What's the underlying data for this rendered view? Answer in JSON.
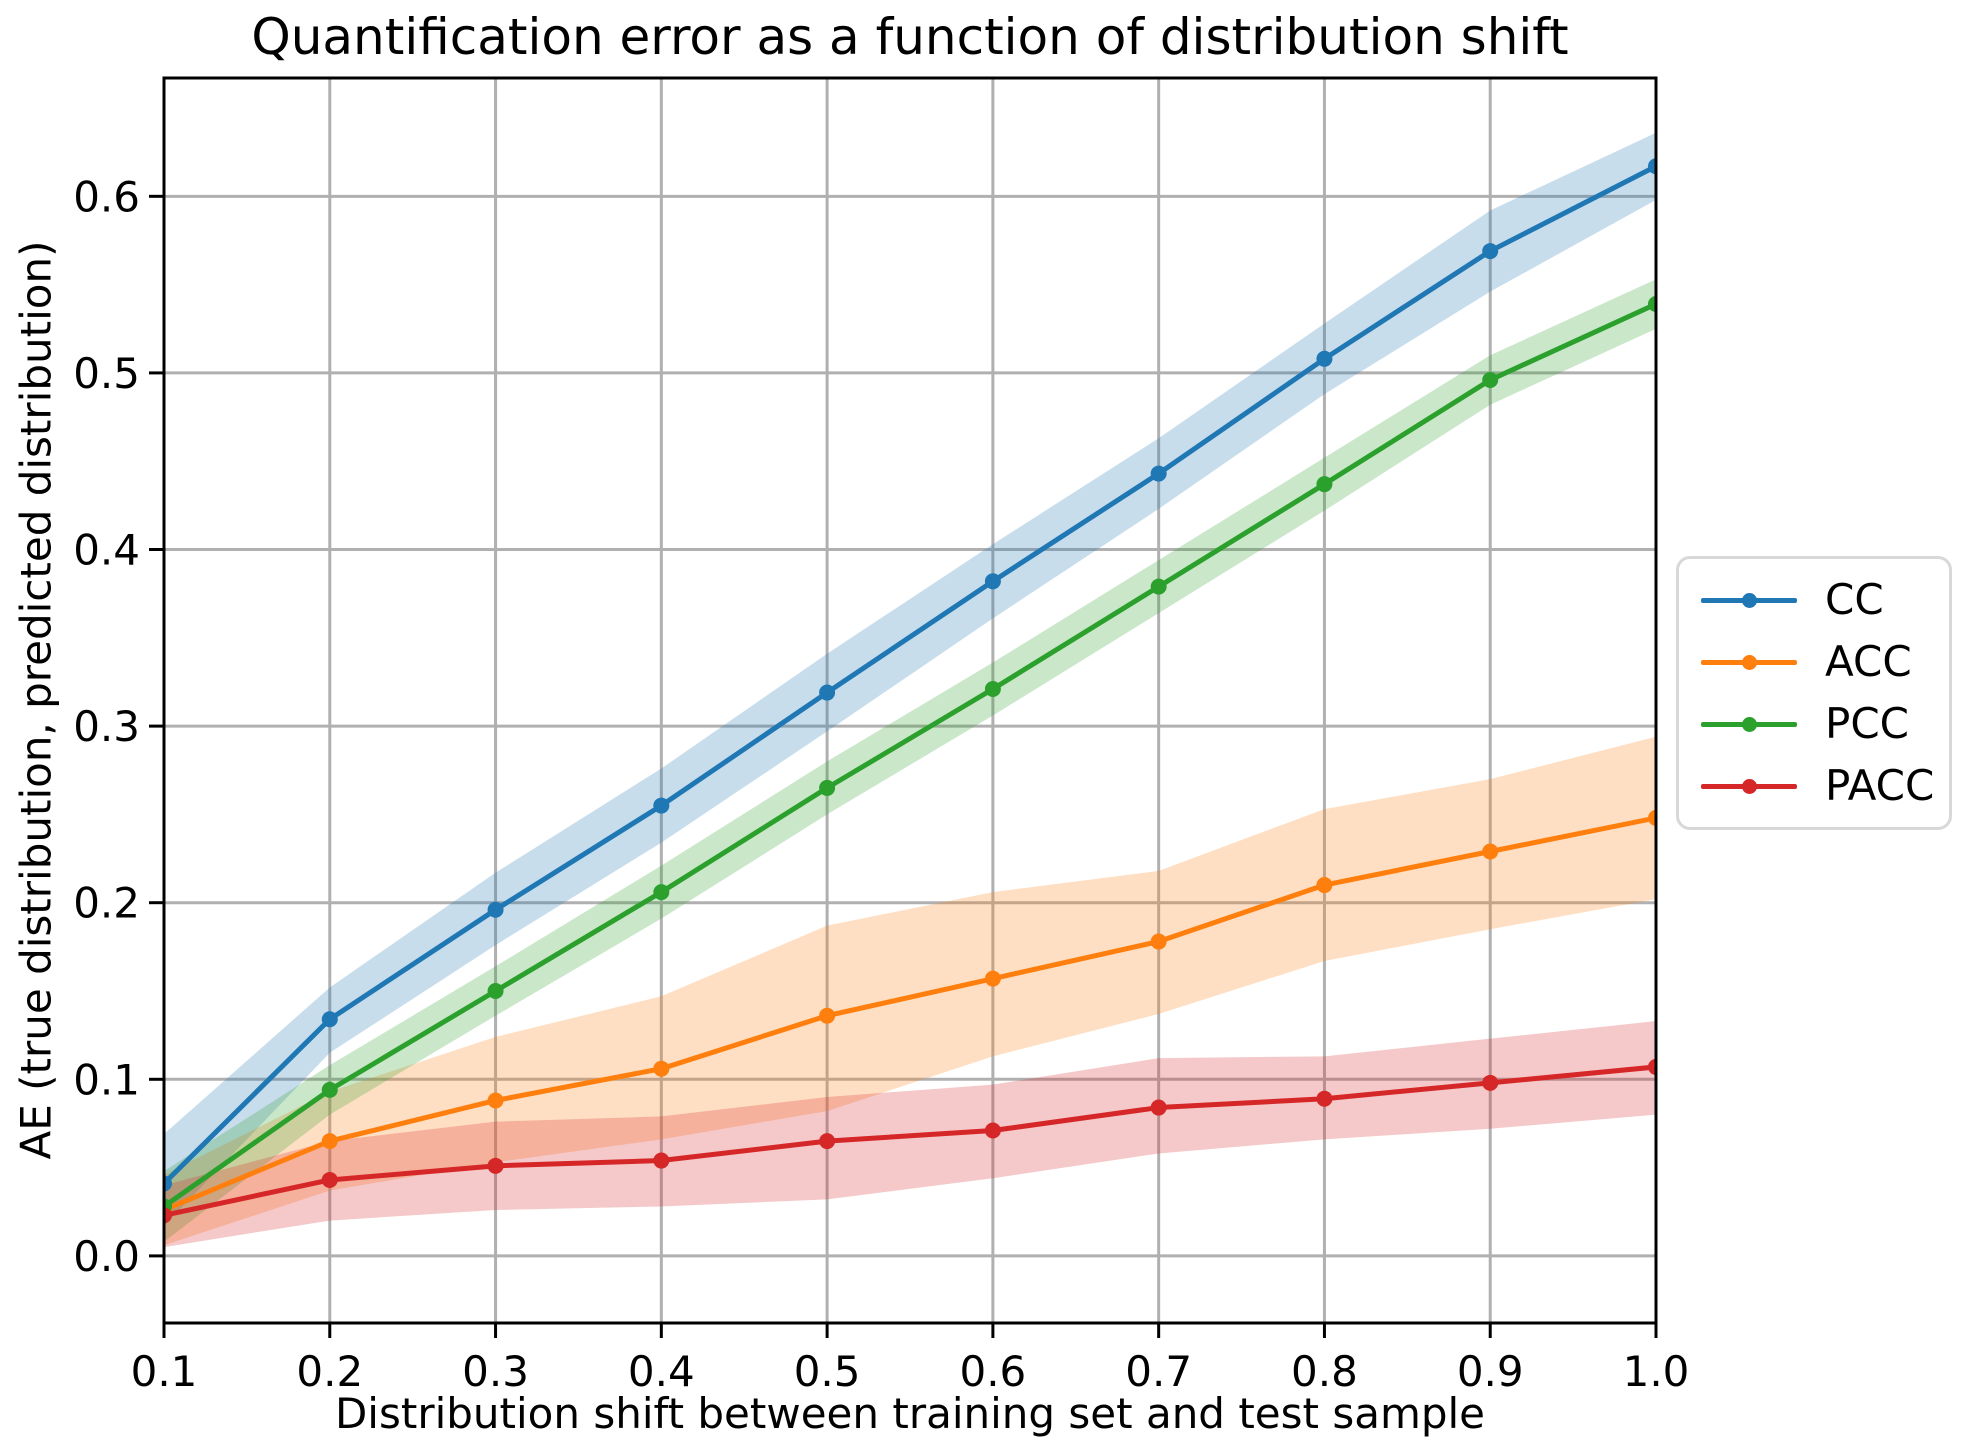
{
  "figure": {
    "background": "#ffffff"
  },
  "chart_data": {
    "type": "line",
    "title": "Quantification error as a function of distribution shift",
    "xlabel": "Distribution shift between training set and test sample",
    "ylabel": "AE (true distribution, predicted distribution)",
    "x": [
      0.1,
      0.2,
      0.3,
      0.4,
      0.5,
      0.6,
      0.7,
      0.8,
      0.9,
      1.0
    ],
    "xlim": [
      0.1,
      1.0
    ],
    "ylim": [
      -0.038,
      0.667
    ],
    "xticks": [
      0.1,
      0.2,
      0.3,
      0.4,
      0.5,
      0.6,
      0.7,
      0.8,
      0.9,
      1.0
    ],
    "xtick_labels": [
      "0.1",
      "0.2",
      "0.3",
      "0.4",
      "0.5",
      "0.6",
      "0.7",
      "0.8",
      "0.9",
      "1.0"
    ],
    "yticks": [
      0.0,
      0.1,
      0.2,
      0.3,
      0.4,
      0.5,
      0.6
    ],
    "ytick_labels": [
      "0.0",
      "0.1",
      "0.2",
      "0.3",
      "0.4",
      "0.5",
      "0.6"
    ],
    "grid": true,
    "grid_color": "#b0b0b0",
    "spine_color": "#000000",
    "band_alpha": 0.25,
    "legend_position": "right-outside",
    "legend_entries": [
      "CC",
      "ACC",
      "PCC",
      "PACC"
    ],
    "series": [
      {
        "name": "CC",
        "color": "#1f77b4",
        "values": [
          0.041,
          0.134,
          0.196,
          0.255,
          0.319,
          0.382,
          0.443,
          0.508,
          0.569,
          0.617
        ],
        "band_upper": [
          0.069,
          0.152,
          0.217,
          0.276,
          0.341,
          0.403,
          0.463,
          0.528,
          0.592,
          0.636
        ],
        "band_lower": [
          0.017,
          0.115,
          0.176,
          0.234,
          0.297,
          0.361,
          0.423,
          0.488,
          0.546,
          0.598
        ]
      },
      {
        "name": "ACC",
        "color": "#ff7f0e",
        "values": [
          0.026,
          0.065,
          0.088,
          0.106,
          0.136,
          0.157,
          0.178,
          0.21,
          0.229,
          0.248
        ],
        "band_upper": [
          0.046,
          0.093,
          0.124,
          0.147,
          0.187,
          0.206,
          0.218,
          0.253,
          0.27,
          0.294
        ],
        "band_lower": [
          0.006,
          0.037,
          0.053,
          0.066,
          0.082,
          0.113,
          0.137,
          0.167,
          0.185,
          0.202
        ]
      },
      {
        "name": "PCC",
        "color": "#2ca02c",
        "values": [
          0.028,
          0.094,
          0.15,
          0.206,
          0.265,
          0.321,
          0.379,
          0.437,
          0.496,
          0.539
        ],
        "band_upper": [
          0.048,
          0.108,
          0.164,
          0.221,
          0.28,
          0.336,
          0.394,
          0.452,
          0.51,
          0.553
        ],
        "band_lower": [
          0.008,
          0.08,
          0.136,
          0.191,
          0.25,
          0.306,
          0.364,
          0.422,
          0.482,
          0.525
        ]
      },
      {
        "name": "PACC",
        "color": "#d62728",
        "values": [
          0.023,
          0.043,
          0.051,
          0.054,
          0.065,
          0.071,
          0.084,
          0.089,
          0.098,
          0.107
        ],
        "band_upper": [
          0.04,
          0.065,
          0.076,
          0.079,
          0.09,
          0.097,
          0.112,
          0.113,
          0.123,
          0.133
        ],
        "band_lower": [
          0.005,
          0.02,
          0.026,
          0.028,
          0.032,
          0.044,
          0.058,
          0.066,
          0.072,
          0.08
        ]
      }
    ]
  }
}
